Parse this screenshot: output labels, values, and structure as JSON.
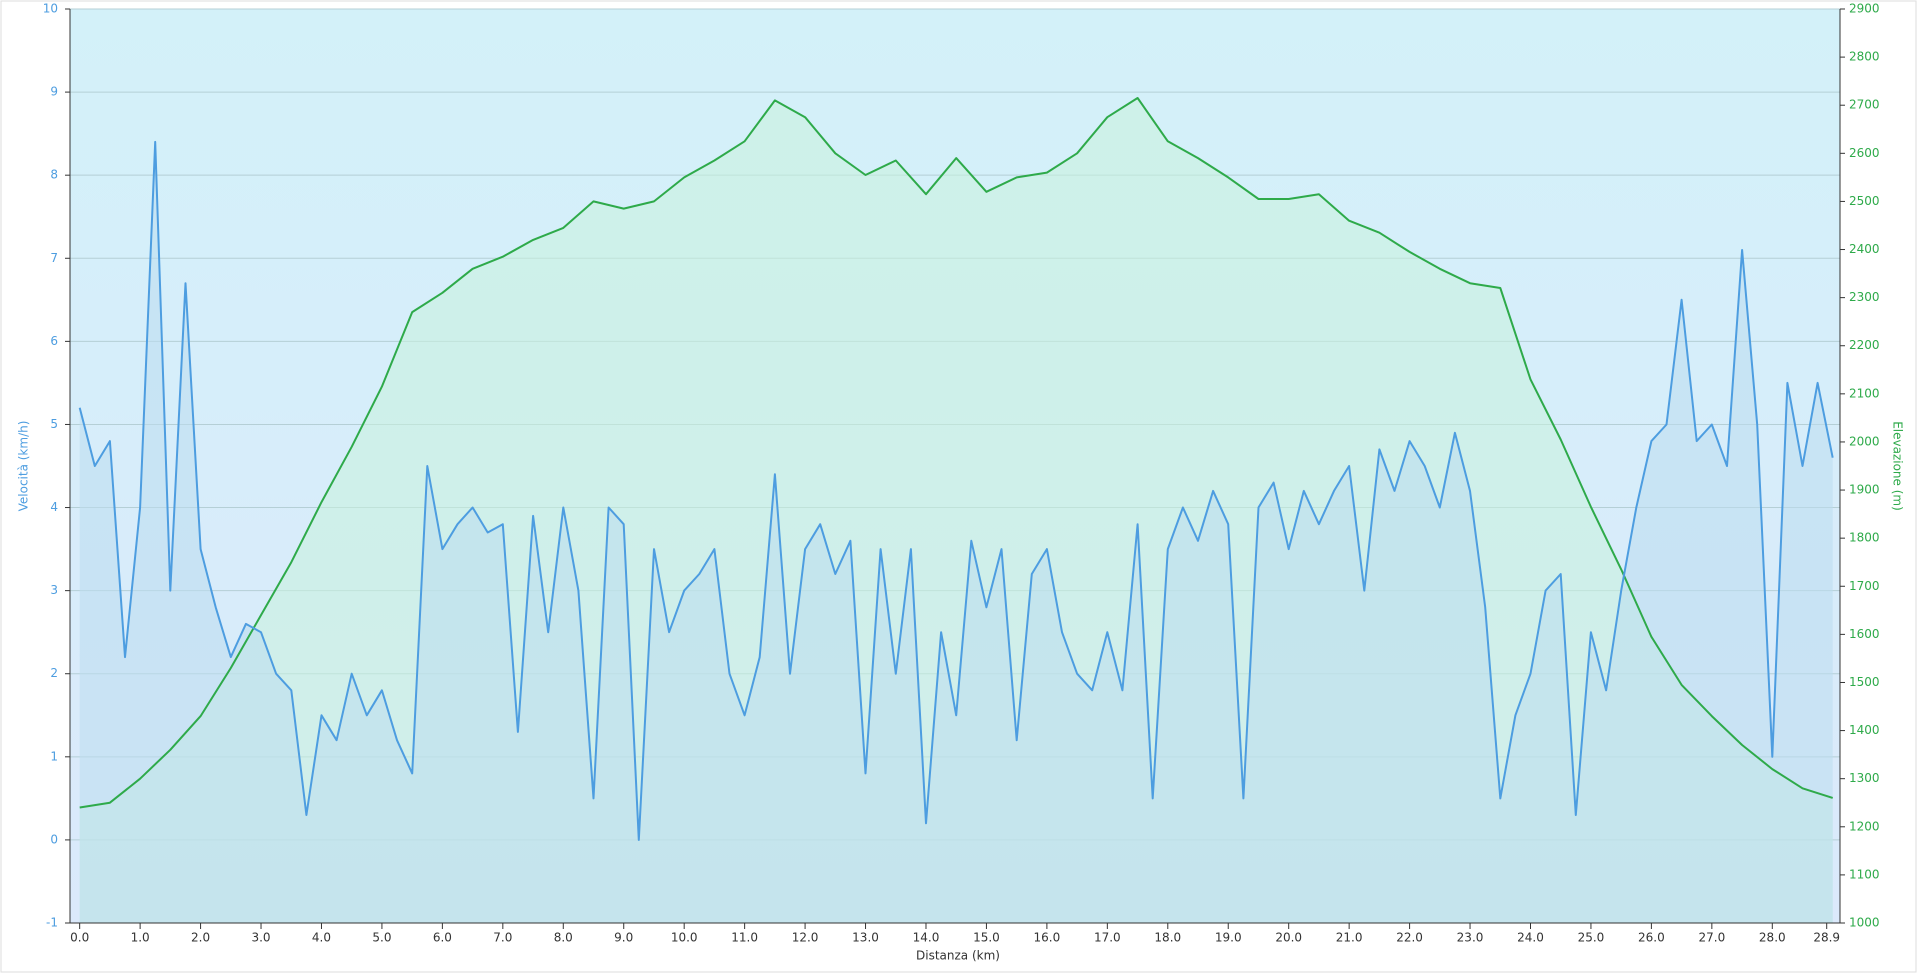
{
  "chart_data": {
    "type": "line",
    "x_label": "Distanza (km)",
    "y_label": "Velocità (km/h)",
    "y2_label": "Elevazione (m)",
    "xlim": [
      -0.16,
      29.12
    ],
    "xticks": [
      {
        "value": 0,
        "label": "0.0"
      },
      {
        "value": 1,
        "label": "1.0"
      },
      {
        "value": 2,
        "label": "2.0"
      },
      {
        "value": 3,
        "label": "3.0"
      },
      {
        "value": 4,
        "label": "4.0"
      },
      {
        "value": 5,
        "label": "5.0"
      },
      {
        "value": 6,
        "label": "6.0"
      },
      {
        "value": 7,
        "label": "7.0"
      },
      {
        "value": 8,
        "label": "8.0"
      },
      {
        "value": 9,
        "label": "9.0"
      },
      {
        "value": 10,
        "label": "10.0"
      },
      {
        "value": 11,
        "label": "11.0"
      },
      {
        "value": 12,
        "label": "12.0"
      },
      {
        "value": 13,
        "label": "13.0"
      },
      {
        "value": 14,
        "label": "14.0"
      },
      {
        "value": 15,
        "label": "15.0"
      },
      {
        "value": 16,
        "label": "16.0"
      },
      {
        "value": 17,
        "label": "17.0"
      },
      {
        "value": 18,
        "label": "18.0"
      },
      {
        "value": 19,
        "label": "19.0"
      },
      {
        "value": 20,
        "label": "20.0"
      },
      {
        "value": 21,
        "label": "21.0"
      },
      {
        "value": 22,
        "label": "22.0"
      },
      {
        "value": 23,
        "label": "23.0"
      },
      {
        "value": 24,
        "label": "24.0"
      },
      {
        "value": 25,
        "label": "25.0"
      },
      {
        "value": 26,
        "label": "26.0"
      },
      {
        "value": 27,
        "label": "27.0"
      },
      {
        "value": 28,
        "label": "28.0"
      },
      28.9
    ],
    "ylim": [
      -1,
      10
    ],
    "yticks": [
      -1,
      0,
      1,
      2,
      3,
      4,
      5,
      6,
      7,
      8,
      9,
      10
    ],
    "y2lim": [
      1000,
      2900
    ],
    "y2ticks": [
      1000,
      1100,
      1200,
      1300,
      1400,
      1500,
      1600,
      1700,
      1800,
      1900,
      2000,
      2100,
      2200,
      2300,
      2400,
      2500,
      2600,
      2700,
      2800,
      2900
    ],
    "grid": true,
    "series": [
      {
        "axis": "y2",
        "color": "#2eaa4a",
        "fill": "#c8f2dc",
        "x": [
          0,
          0.5,
          1,
          1.5,
          2,
          2.5,
          3,
          3.5,
          4,
          4.5,
          5,
          5.5,
          6,
          6.5,
          7,
          7.5,
          8,
          8.5,
          9,
          9.5,
          10,
          10.5,
          11,
          11.5,
          12,
          12.5,
          13,
          13.5,
          14,
          14.5,
          15,
          15.5,
          16,
          16.5,
          17,
          17.5,
          18,
          18.5,
          19,
          19.5,
          20,
          20.5,
          21,
          21.5,
          22,
          22.5,
          23,
          23.5,
          24,
          24.5,
          25,
          25.5,
          26,
          26.5,
          27,
          27.5,
          28,
          28.5,
          29
        ],
        "values": [
          1240,
          1250,
          1300,
          1360,
          1430,
          1530,
          1640,
          1750,
          1875,
          1990,
          2115,
          2270,
          2310,
          2360,
          2385,
          2420,
          2445,
          2500,
          2485,
          2500,
          2550,
          2585,
          2625,
          2710,
          2675,
          2600,
          2555,
          2585,
          2515,
          2590,
          2520,
          2550,
          2560,
          2600,
          2675,
          2715,
          2625,
          2590,
          2550,
          2505,
          2505,
          2515,
          2460,
          2435,
          2395,
          2360,
          2330,
          2320,
          2130,
          2005,
          1865,
          1735,
          1595,
          1495,
          1430,
          1370,
          1320,
          1280,
          1260
        ]
      },
      {
        "axis": "y",
        "color": "#4d9de0",
        "fill": "#bcdcef",
        "x": [
          0,
          0.25,
          0.5,
          0.75,
          1,
          1.25,
          1.5,
          1.75,
          2,
          2.25,
          2.5,
          2.75,
          3,
          3.25,
          3.5,
          3.75,
          4,
          4.25,
          4.5,
          4.75,
          5,
          5.25,
          5.5,
          5.75,
          6,
          6.25,
          6.5,
          6.75,
          7,
          7.25,
          7.5,
          7.75,
          8,
          8.25,
          8.5,
          8.75,
          9,
          9.25,
          9.5,
          9.75,
          10,
          10.25,
          10.5,
          10.75,
          11,
          11.25,
          11.5,
          11.75,
          12,
          12.25,
          12.5,
          12.75,
          13,
          13.25,
          13.5,
          13.75,
          14,
          14.25,
          14.5,
          14.75,
          15,
          15.25,
          15.5,
          15.75,
          16,
          16.25,
          16.5,
          16.75,
          17,
          17.25,
          17.5,
          17.75,
          18,
          18.25,
          18.5,
          18.75,
          19,
          19.25,
          19.5,
          19.75,
          20,
          20.25,
          20.5,
          20.75,
          21,
          21.25,
          21.5,
          21.75,
          22,
          22.25,
          22.5,
          22.75,
          23,
          23.25,
          23.5,
          23.75,
          24,
          24.25,
          24.5,
          24.75,
          25,
          25.25,
          25.5,
          25.75,
          26,
          26.25,
          26.5,
          26.75,
          27,
          27.25,
          27.5,
          27.75,
          28,
          28.25,
          28.5,
          28.75,
          29
        ],
        "values": [
          5.2,
          4.5,
          4.8,
          2.2,
          4.0,
          8.4,
          3.0,
          6.7,
          3.5,
          2.8,
          2.2,
          2.6,
          2.5,
          2.0,
          1.8,
          0.3,
          1.5,
          1.2,
          2.0,
          1.5,
          1.8,
          1.2,
          0.8,
          4.5,
          3.5,
          3.8,
          4.0,
          3.7,
          3.8,
          1.3,
          3.9,
          2.5,
          4.0,
          3.0,
          0.5,
          4.0,
          3.8,
          0.0,
          3.5,
          2.5,
          3.0,
          3.2,
          3.5,
          2.0,
          1.5,
          2.2,
          4.4,
          2.0,
          3.5,
          3.8,
          3.2,
          3.6,
          0.8,
          3.5,
          2.0,
          3.5,
          0.2,
          2.5,
          1.5,
          3.6,
          2.8,
          3.5,
          1.2,
          3.2,
          3.5,
          2.5,
          2.0,
          1.8,
          2.5,
          1.8,
          3.8,
          0.5,
          3.5,
          4.0,
          3.6,
          4.2,
          3.8,
          0.5,
          4.0,
          4.3,
          3.5,
          4.2,
          3.8,
          4.2,
          4.5,
          3.0,
          4.7,
          4.2,
          4.8,
          4.5,
          4.0,
          4.9,
          4.2,
          2.8,
          0.5,
          1.5,
          2.0,
          3.0,
          3.2,
          0.3,
          2.5,
          1.8,
          3.0,
          4.0,
          4.8,
          5.0,
          6.5,
          4.8,
          5.0,
          4.5,
          7.1,
          5.0,
          1.0,
          5.5,
          4.5,
          5.5,
          4.6
        ]
      }
    ]
  }
}
